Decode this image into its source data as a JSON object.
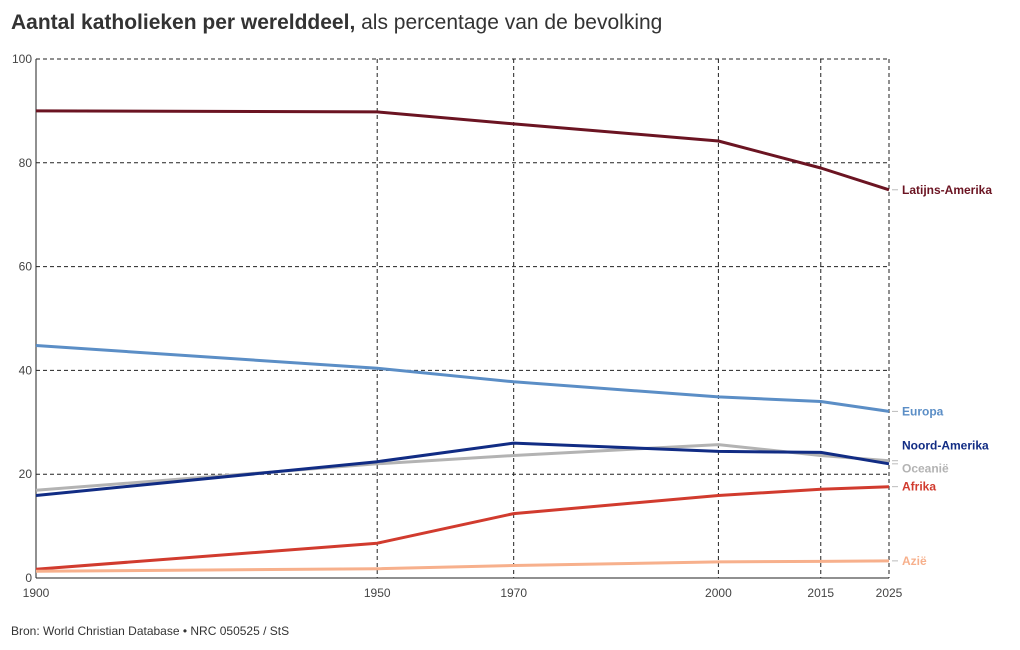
{
  "header": {
    "title_bold": "Aantal katholieken per werelddeel,",
    "title_rest": " als percentage van de bevolking"
  },
  "footer": {
    "source": "Bron: World Christian Database • NRC 050525 / StS"
  },
  "chart_data": {
    "type": "line",
    "title": "Aantal katholieken per werelddeel, als percentage van de bevolking",
    "xlabel": "",
    "ylabel": "",
    "xlim": [
      1900,
      2025
    ],
    "ylim": [
      0,
      100
    ],
    "x_ticks": [
      1900,
      1950,
      1970,
      2000,
      2015,
      2025
    ],
    "y_ticks": [
      0,
      20,
      40,
      60,
      80,
      100
    ],
    "grid": true,
    "x": [
      1900,
      1950,
      1970,
      2000,
      2015,
      2025
    ],
    "series": [
      {
        "name": "Latijns-Amerika",
        "color": "#6b1422",
        "values": [
          90,
          89.8,
          87.5,
          84.2,
          79,
          74.8
        ]
      },
      {
        "name": "Europa",
        "color": "#5b8ec6",
        "values": [
          44.8,
          40.4,
          37.8,
          34.9,
          34,
          32.1
        ]
      },
      {
        "name": "Oceanië",
        "color": "#b3b3b3",
        "values": [
          16.9,
          22,
          23.6,
          25.7,
          23.6,
          22.6
        ]
      },
      {
        "name": "Noord-Amerika",
        "color": "#112c84",
        "values": [
          15.9,
          22.4,
          26,
          24.4,
          24.2,
          22
        ]
      },
      {
        "name": "Afrika",
        "color": "#d13b2e",
        "values": [
          1.7,
          6.7,
          12.4,
          15.9,
          17.1,
          17.6
        ]
      },
      {
        "name": "Azië",
        "color": "#f7b08c",
        "values": [
          1.3,
          1.8,
          2.4,
          3.1,
          3.2,
          3.3
        ]
      }
    ]
  }
}
